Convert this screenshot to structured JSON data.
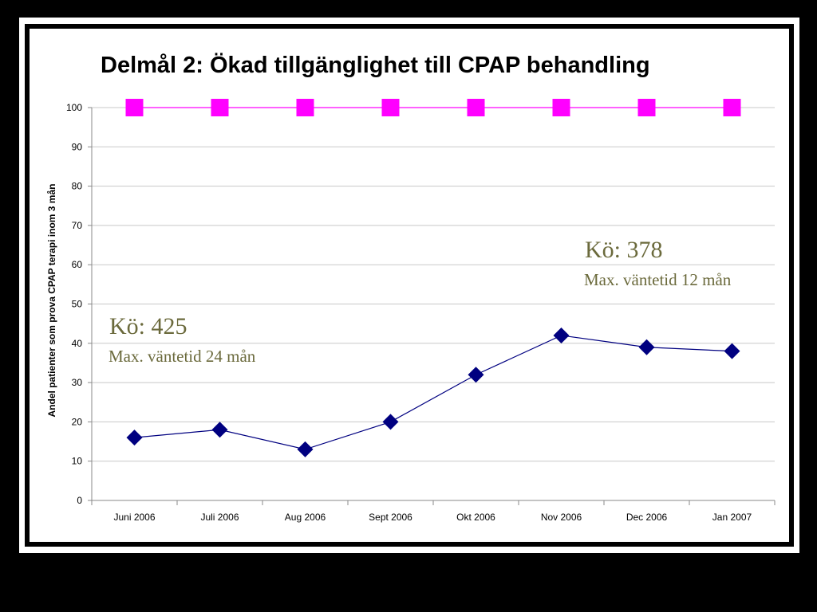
{
  "title": "Delmål 2: Ökad tillgänglighet till CPAP behandling",
  "colors": {
    "target_series": "#ff00ff",
    "actual_series": "#000080",
    "annotation": "#6b6a3c"
  },
  "annotations": {
    "left": {
      "queue": "Kö: 425",
      "wait": "Max. väntetid 24 mån"
    },
    "right": {
      "queue": "Kö: 378",
      "wait": "Max. väntetid 12 mån"
    }
  },
  "chart_data": {
    "type": "line",
    "title": "Delmål 2: Ökad tillgänglighet till CPAP behandling",
    "xlabel": "",
    "ylabel": "Andel patienter som prova CPAP terapi inom 3 mån",
    "categories": [
      "Juni 2006",
      "Juli 2006",
      "Aug 2006",
      "Sept 2006",
      "Okt 2006",
      "Nov 2006",
      "Dec 2006",
      "Jan 2007"
    ],
    "ylim": [
      0,
      100
    ],
    "yticks": [
      0,
      10,
      20,
      30,
      40,
      50,
      60,
      70,
      80,
      90,
      100
    ],
    "grid": true,
    "legend": "none",
    "series": [
      {
        "values": [
          100,
          100,
          100,
          100,
          100,
          100,
          100,
          100
        ],
        "marker": "square",
        "color": "#ff00ff"
      },
      {
        "values": [
          16,
          18,
          13,
          20,
          32,
          42,
          39,
          38
        ],
        "marker": "diamond",
        "color": "#000080"
      }
    ]
  }
}
